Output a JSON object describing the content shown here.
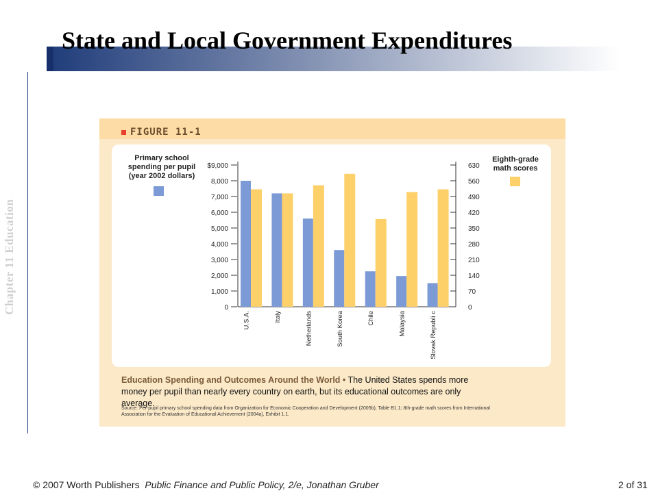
{
  "slide": {
    "title": "State and Local Government Expenditures",
    "side_label": "Chapter 11 Education",
    "footer_copyright": "© 2007 Worth Publishers",
    "footer_book": "Public Finance and Public Policy, 2/e, Jonathan Gruber",
    "page": "2 of 31"
  },
  "figure": {
    "label": "FIGURE 11-1",
    "caption_title": "Education Spending and Outcomes Around the World •",
    "caption_text": "The United States spends more money per pupil than nearly every country on earth, but its educational outcomes are only average.",
    "source": "Source: Per-pupil primary school spending data from Organization for Economic Cooperation and Development (2005b), Table B1.1; 8th-grade math scores from International Association for the Evaluation of Educational Achievement (2004a), Exhibit 1.1."
  },
  "colors": {
    "spending": "#7b9ad6",
    "math": "#fdd06a"
  },
  "chart_data": {
    "type": "bar",
    "categories": [
      "U.S.A.",
      "Italy",
      "Netherlands",
      "South Korea",
      "Chile",
      "Malaysia",
      "Slovak Republi c"
    ],
    "series": [
      {
        "name": "Primary school spending per pupil (year 2002 dollars)",
        "axis": "left",
        "values": [
          8000,
          7200,
          5600,
          3600,
          2250,
          1950,
          1500
        ]
      },
      {
        "name": "Eighth-grade math scores",
        "axis": "right",
        "values": [
          522,
          504,
          540,
          591,
          390,
          510,
          522
        ]
      }
    ],
    "left_axis": {
      "ylim": [
        0,
        9000
      ],
      "ticks": [
        "$9,000",
        "8,000",
        "7,000",
        "6,000",
        "5,000",
        "4,000",
        "3,000",
        "2,000",
        "1,000",
        "0"
      ]
    },
    "right_axis": {
      "ylim": [
        0,
        630
      ],
      "ticks": [
        "630",
        "560",
        "490",
        "420",
        "350",
        "280",
        "210",
        "140",
        "70",
        "0"
      ]
    },
    "legend": {
      "left": "Primary school spending per pupil (year 2002 dollars)",
      "right": "Eighth-grade math scores"
    }
  }
}
